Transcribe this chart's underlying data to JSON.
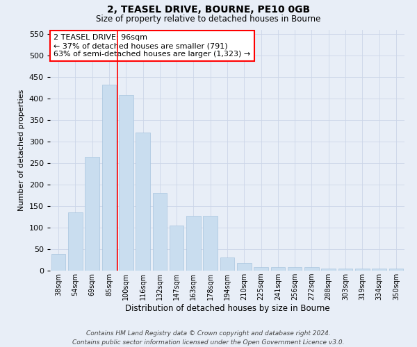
{
  "title1": "2, TEASEL DRIVE, BOURNE, PE10 0GB",
  "title2": "Size of property relative to detached houses in Bourne",
  "xlabel": "Distribution of detached houses by size in Bourne",
  "ylabel": "Number of detached properties",
  "categories": [
    "38sqm",
    "54sqm",
    "69sqm",
    "85sqm",
    "100sqm",
    "116sqm",
    "132sqm",
    "147sqm",
    "163sqm",
    "178sqm",
    "194sqm",
    "210sqm",
    "225sqm",
    "241sqm",
    "256sqm",
    "272sqm",
    "288sqm",
    "303sqm",
    "319sqm",
    "334sqm",
    "350sqm"
  ],
  "values": [
    38,
    135,
    265,
    432,
    408,
    320,
    180,
    105,
    128,
    128,
    30,
    18,
    8,
    8,
    8,
    8,
    5,
    5,
    5,
    5,
    5
  ],
  "bar_color": "#c9ddef",
  "bar_edge_color": "#a8c4de",
  "vline_x_index": 4,
  "vline_color": "red",
  "annotation_text": "2 TEASEL DRIVE: 96sqm\n← 37% of detached houses are smaller (791)\n63% of semi-detached houses are larger (1,323) →",
  "annotation_box_color": "white",
  "annotation_box_edge_color": "red",
  "ylim": [
    0,
    560
  ],
  "yticks": [
    0,
    50,
    100,
    150,
    200,
    250,
    300,
    350,
    400,
    450,
    500,
    550
  ],
  "grid_color": "#ccd6e8",
  "footer1": "Contains HM Land Registry data © Crown copyright and database right 2024.",
  "footer2": "Contains public sector information licensed under the Open Government Licence v3.0.",
  "bg_color": "#e8eef7"
}
